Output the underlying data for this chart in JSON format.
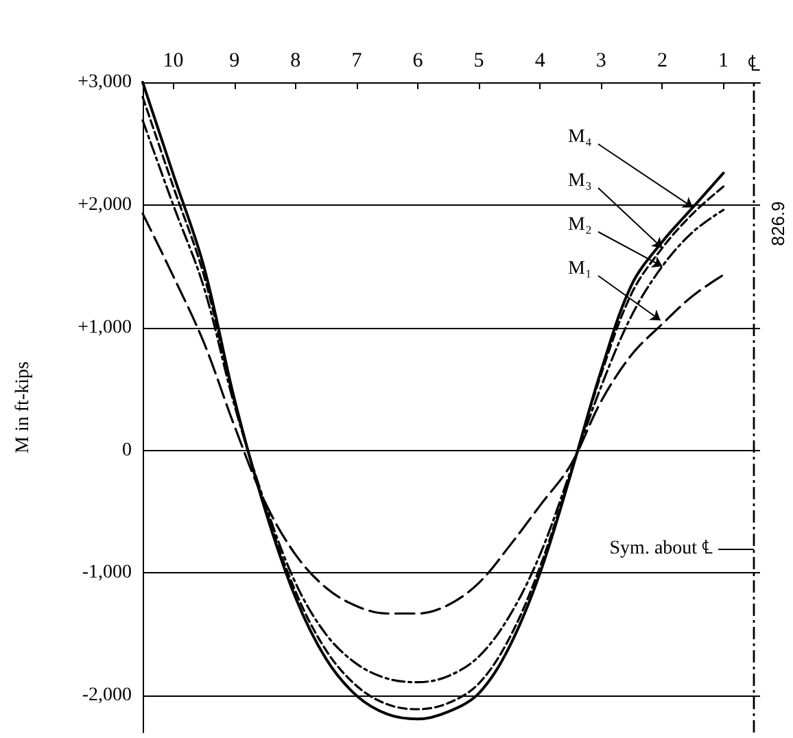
{
  "chart_data": {
    "type": "line",
    "ylabel": "M in ft-kips",
    "xlim": [
      10.5,
      0.4
    ],
    "xticks": [
      10,
      9,
      8,
      7,
      6,
      5,
      4,
      3,
      2,
      1
    ],
    "ylim": [
      -2300,
      3000
    ],
    "yticks": [
      {
        "value": -2000,
        "label": "-2,000"
      },
      {
        "value": -1000,
        "label": "-1,000"
      },
      0,
      {
        "value": 1000,
        "label": "+1,000"
      },
      {
        "value": 2000,
        "label": "+2,000"
      },
      {
        "value": 3000,
        "label": "+3,000"
      }
    ],
    "grid": "y",
    "marker": "none",
    "series": [
      {
        "color": "#000000",
        "line_style": "solid",
        "x": [
          10.5,
          10,
          9.5,
          9,
          8.5,
          8,
          7.5,
          7,
          6.5,
          6,
          5.5,
          5,
          4.5,
          4,
          3.5,
          3,
          2.5,
          2,
          1.5,
          1
        ],
        "values": [
          3000,
          2250,
          1500,
          420,
          -480,
          -1200,
          -1700,
          -2000,
          -2150,
          -2190,
          -2130,
          -1980,
          -1600,
          -1000,
          -200,
          650,
          1350,
          1700,
          1980,
          2260
        ]
      },
      {
        "color": "#000000",
        "line_style": "dashed",
        "x": [
          10.5,
          10,
          9.5,
          9,
          8.5,
          8,
          7.5,
          7,
          6.5,
          6,
          5.5,
          5,
          4.5,
          4,
          3.5,
          3,
          2.5,
          2,
          1.5,
          1
        ],
        "values": [
          2880,
          2150,
          1430,
          400,
          -460,
          -1150,
          -1630,
          -1920,
          -2070,
          -2110,
          -2060,
          -1900,
          -1530,
          -950,
          -190,
          620,
          1280,
          1650,
          1930,
          2150
        ]
      },
      {
        "color": "#000000",
        "line_style": "dashdot",
        "x": [
          10.5,
          10,
          9.5,
          9,
          8.5,
          8,
          7.5,
          7,
          6.5,
          6,
          5.5,
          5,
          4.5,
          4,
          3.5,
          3,
          2.5,
          2,
          1.5,
          1
        ],
        "values": [
          2690,
          2000,
          1330,
          370,
          -430,
          -1080,
          -1500,
          -1740,
          -1860,
          -1890,
          -1840,
          -1680,
          -1350,
          -850,
          -170,
          520,
          1100,
          1500,
          1780,
          1960
        ]
      },
      {
        "color": "#000000",
        "line_style": "longdash",
        "x": [
          10.5,
          10,
          9.5,
          9,
          8.5,
          8,
          7.5,
          7,
          6.5,
          6,
          5.5,
          5,
          4.5,
          4,
          3.5,
          3,
          2.5,
          2,
          1.5,
          1
        ],
        "values": [
          1930,
          1420,
          880,
          200,
          -420,
          -850,
          -1120,
          -1270,
          -1330,
          -1330,
          -1260,
          -1080,
          -780,
          -450,
          -120,
          400,
          780,
          1030,
          1260,
          1430
        ]
      }
    ],
    "ref_lines": [
      {
        "axis": "x",
        "value": 0.5,
        "label": "℄",
        "line_style": "dashdot",
        "color": "#000000"
      }
    ],
    "annotations": [
      {
        "text": "M₄",
        "x": 1.5,
        "y": 1980
      },
      {
        "text": "M₃",
        "x": 2,
        "y": 1650
      },
      {
        "text": "M₂",
        "x": 2,
        "y": 1500
      },
      {
        "text": "M₁",
        "x": 2.03,
        "y": 1060
      },
      {
        "text": "Sym. about ℄",
        "x": 0.5,
        "y": -800
      },
      "826.9"
    ]
  }
}
